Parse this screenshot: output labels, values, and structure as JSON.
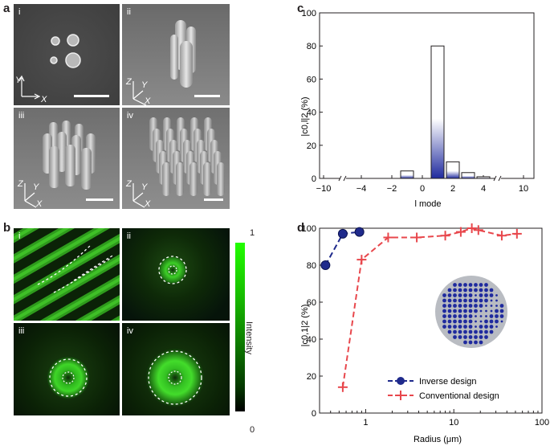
{
  "panels": {
    "a": "a",
    "b": "b",
    "c": "c",
    "d": "d"
  },
  "sem": {
    "tiles": [
      "i",
      "ii",
      "iii",
      "iv"
    ],
    "axes_top": [
      "Y",
      "X"
    ],
    "axes_3d": [
      "Z",
      "Y",
      "X"
    ]
  },
  "intensity": {
    "tiles": [
      "i",
      "ii",
      "iii",
      "iv"
    ],
    "colorbar_label": "Intensity",
    "colorbar_max": "1",
    "colorbar_min": "0"
  },
  "colors": {
    "sem_bg": "#5a5a5a",
    "green": "#22e000",
    "bar_dark": "#1f2a9e",
    "inverse": "#1f2a8c",
    "conventional": "#e8474c"
  },
  "chart_data": [
    {
      "type": "bar",
      "panel": "c",
      "ylabel": "|c0,l|2 (%)",
      "xlabel": "l mode",
      "xticks": [
        "−10",
        "−4",
        "−2",
        "0",
        "2",
        "4",
        "10"
      ],
      "yticks": [
        "0",
        "20",
        "40",
        "60",
        "80",
        "100"
      ],
      "ylim": [
        0,
        100
      ],
      "categories": [
        -1,
        1,
        2,
        3,
        4
      ],
      "values": [
        4.5,
        80,
        10,
        3.5,
        1
      ]
    },
    {
      "type": "line",
      "panel": "d",
      "xscale": "log",
      "xlabel": "Radius (μm)",
      "ylabel": "|c0,1|2 (%)",
      "xticks": [
        "1",
        "10",
        "100"
      ],
      "yticks": [
        "0",
        "20",
        "40",
        "60",
        "80",
        "100"
      ],
      "xlim": [
        0.3,
        100
      ],
      "ylim": [
        0,
        100
      ],
      "series": [
        {
          "name": "Inverse design",
          "x": [
            0.35,
            0.55,
            0.85
          ],
          "y": [
            80,
            97,
            98
          ]
        },
        {
          "name": "Conventional design",
          "x": [
            0.55,
            0.9,
            1.8,
            3.8,
            8,
            12,
            16,
            19,
            35,
            52
          ],
          "y": [
            14,
            83,
            95,
            95,
            96,
            98,
            100,
            99,
            96,
            97
          ]
        }
      ]
    }
  ]
}
